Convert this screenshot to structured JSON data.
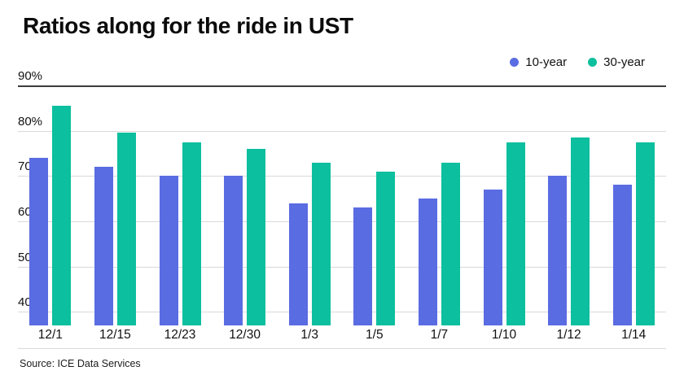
{
  "title": "Ratios along for the ride in UST",
  "source": "Source: ICE Data Services",
  "legend": {
    "items": [
      {
        "label": "10-year",
        "color": "#5a6ce2"
      },
      {
        "label": "30-year",
        "color": "#0cbf9e"
      }
    ]
  },
  "chart_data": {
    "type": "bar",
    "title": "Ratios along for the ride in UST",
    "categories": [
      "12/1",
      "12/15",
      "12/23",
      "12/30",
      "1/3",
      "1/5",
      "1/7",
      "1/10",
      "1/12",
      "1/14"
    ],
    "series": [
      {
        "name": "10-year",
        "color": "#5a6ce2",
        "values": [
          74,
          72,
          70,
          70,
          64,
          63,
          65,
          67,
          70,
          68
        ]
      },
      {
        "name": "30-year",
        "color": "#0cbf9e",
        "values": [
          85.5,
          79.5,
          77.5,
          76,
          73,
          71,
          73,
          77.5,
          78.5,
          77.5
        ]
      }
    ],
    "xlabel": "",
    "ylabel": "",
    "yticks": [
      90,
      80,
      70,
      60,
      50,
      40
    ],
    "ytick_labels": [
      "90%",
      "80%",
      "70%",
      "60%",
      "50%",
      "40%"
    ],
    "ylim": [
      40,
      90
    ],
    "baseline_value": 37,
    "grid": true,
    "legend_position": "top-right",
    "source": "Source: ICE Data Services"
  }
}
